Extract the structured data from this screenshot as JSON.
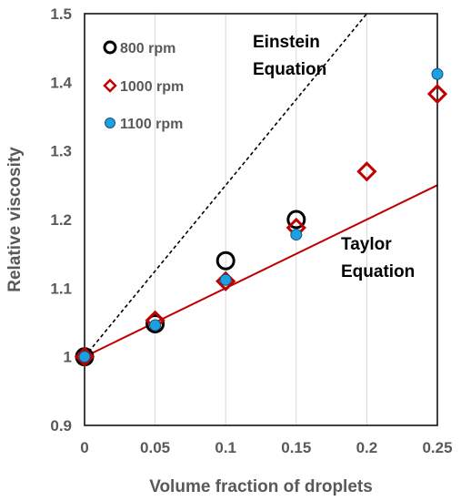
{
  "chart_data": {
    "type": "scatter",
    "xlabel": "Volume fraction of droplets",
    "ylabel": "Relative viscosity",
    "xlim": [
      0,
      0.25
    ],
    "ylim": [
      0.9,
      1.5
    ],
    "x_ticks": [
      0,
      0.05,
      0.1,
      0.15,
      0.2,
      0.25
    ],
    "x_tick_labels": [
      "0",
      "0.05",
      "0.1",
      "0.15",
      "0.2",
      "0.25"
    ],
    "y_ticks": [
      0.9,
      1.0,
      1.1,
      1.2,
      1.3,
      1.4,
      1.5
    ],
    "y_tick_labels": [
      "0.9",
      "1",
      "1.1",
      "1.2",
      "1.3",
      "1.4",
      "1.5"
    ],
    "grid": "vertical",
    "legend_position": "top-left",
    "series": [
      {
        "name": "800 rpm",
        "marker": "circle-open",
        "color": "#000000",
        "x": [
          0,
          0.05,
          0.1,
          0.15
        ],
        "y": [
          1.0,
          1.048,
          1.14,
          1.2
        ]
      },
      {
        "name": "1000 rpm",
        "marker": "diamond-open",
        "color": "#c00000",
        "x": [
          0,
          0.05,
          0.1,
          0.15,
          0.2,
          0.25
        ],
        "y": [
          1.0,
          1.053,
          1.11,
          1.188,
          1.27,
          1.383
        ]
      },
      {
        "name": "1100 rpm",
        "marker": "circle-filled",
        "color": "#1ba1e2",
        "x": [
          0,
          0.05,
          0.1,
          0.15,
          0.25
        ],
        "y": [
          1.0,
          1.046,
          1.112,
          1.178,
          1.412
        ]
      }
    ],
    "lines": [
      {
        "label_lines": [
          "Einstein",
          "Equation"
        ],
        "style": "dashed",
        "color": "#000000",
        "x": [
          0,
          0.2
        ],
        "y": [
          1.0,
          1.5
        ]
      },
      {
        "label_lines": [
          "Taylor",
          "Equation"
        ],
        "style": "solid",
        "color": "#c00000",
        "x": [
          0,
          0.25
        ],
        "y": [
          1.0,
          1.25
        ]
      }
    ]
  }
}
